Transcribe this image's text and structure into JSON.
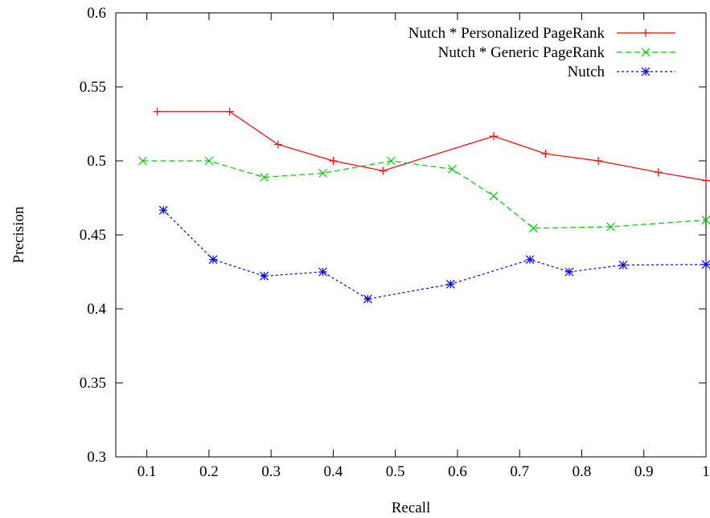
{
  "chart_data": {
    "type": "line",
    "title": "",
    "xlabel": "Recall",
    "ylabel": "Precision",
    "xlim": [
      0.05,
      1.0
    ],
    "ylim": [
      0.3,
      0.6
    ],
    "xticks": [
      "0.1",
      "0.2",
      "0.3",
      "0.4",
      "0.5",
      "0.6",
      "0.7",
      "0.8",
      "0.9",
      "1"
    ],
    "yticks": [
      "0.3",
      "0.35",
      "0.4",
      "0.45",
      "0.5",
      "0.55",
      "0.6"
    ],
    "grid": false,
    "legend_position": "top-right",
    "series": [
      {
        "name": "Nutch * Personalized PageRank",
        "color": "#ff0000",
        "marker": "plus",
        "line_style": "solid",
        "x": [
          0.1167,
          0.2333,
          0.3111,
          0.4,
          0.48,
          0.6583,
          0.7417,
          0.8267,
          0.9233,
          1.0
        ],
        "y": [
          0.5333,
          0.5333,
          0.5111,
          0.5,
          0.4933,
          0.5167,
          0.5048,
          0.5,
          0.4923,
          0.4867
        ]
      },
      {
        "name": "Nutch * Generic PageRank",
        "color": "#00cc00",
        "marker": "cross",
        "line_style": "dashed",
        "x": [
          0.0933,
          0.2,
          0.2889,
          0.3833,
          0.4933,
          0.5917,
          0.6583,
          0.7222,
          0.8467,
          1.0
        ],
        "y": [
          0.5,
          0.5,
          0.4889,
          0.4917,
          0.5,
          0.4944,
          0.4762,
          0.4545,
          0.4555,
          0.46
        ]
      },
      {
        "name": "Nutch",
        "color": "#0000ff",
        "marker": "asterisk",
        "line_style": "dotted",
        "x": [
          0.1267,
          0.2067,
          0.2889,
          0.3833,
          0.4556,
          0.5889,
          0.7167,
          0.78,
          0.8667,
          1.0
        ],
        "y": [
          0.4667,
          0.4333,
          0.4222,
          0.425,
          0.4067,
          0.4167,
          0.4333,
          0.425,
          0.4296,
          0.43
        ]
      }
    ]
  }
}
